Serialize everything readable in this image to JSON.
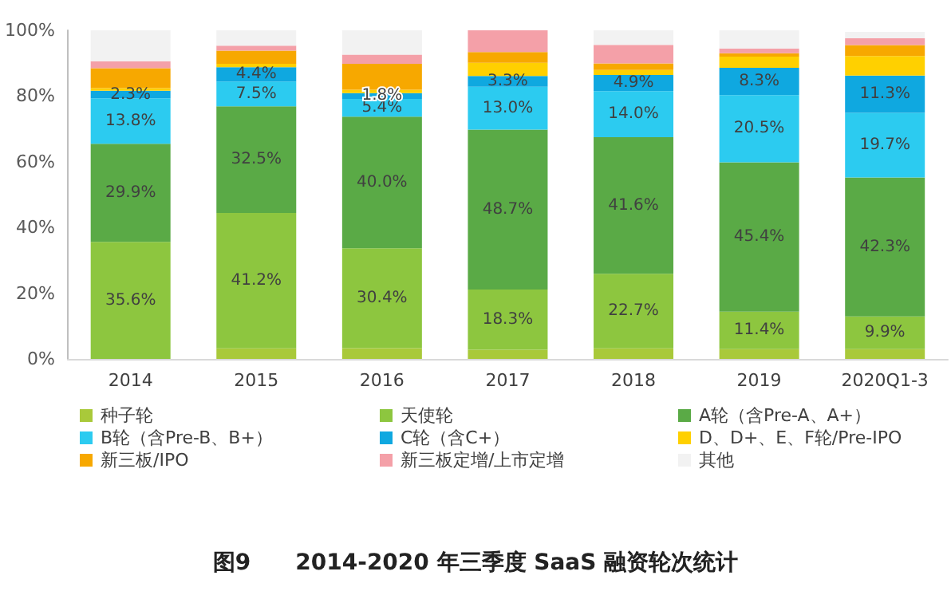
{
  "chart_data": {
    "type": "bar",
    "stacked": true,
    "title": "图9　　2014-2020 年三季度 SaaS 融资轮次统计",
    "categories": [
      "2014",
      "2015",
      "2016",
      "2017",
      "2018",
      "2019",
      "2020Q1-3"
    ],
    "ylim": [
      0,
      100
    ],
    "yticks": [
      {
        "value": 0,
        "label": "0%"
      },
      {
        "value": 20,
        "label": "20%"
      },
      {
        "value": 40,
        "label": "40%"
      },
      {
        "value": 60,
        "label": "60%"
      },
      {
        "value": 80,
        "label": "80%"
      },
      {
        "value": 100,
        "label": "100%"
      }
    ],
    "grid": false,
    "legend": "bottom",
    "series": [
      {
        "name": "种子轮",
        "color": "#a9c93a",
        "values": [
          0,
          3.2,
          3.3,
          2.8,
          3.2,
          3.0,
          3.0
        ]
      },
      {
        "name": "天使轮",
        "color": "#8dc63f",
        "values": [
          35.6,
          41.2,
          30.4,
          18.3,
          22.7,
          11.4,
          9.9
        ],
        "value_labels": [
          "35.6%",
          "41.2%",
          "30.4%",
          "18.3%",
          "22.7%",
          "11.4%",
          "9.9%"
        ]
      },
      {
        "name": "A轮（含Pre-A、A+）",
        "color": "#5aaa46",
        "values": [
          29.9,
          32.5,
          40.0,
          48.7,
          41.6,
          45.4,
          42.3
        ],
        "value_labels": [
          "29.9%",
          "32.5%",
          "40.0%",
          "48.7%",
          "41.6%",
          "45.4%",
          "42.3%"
        ]
      },
      {
        "name": "B轮（含Pre-B、B+）",
        "color": "#2ccbf0",
        "values": [
          13.8,
          7.5,
          5.4,
          13.0,
          14.0,
          20.5,
          19.7
        ],
        "value_labels": [
          "13.8%",
          "7.5%",
          "5.4%",
          "13.0%",
          "14.0%",
          "20.5%",
          "19.7%"
        ]
      },
      {
        "name": "C轮（含C+）",
        "color": "#0fa8e0",
        "values": [
          2.3,
          4.4,
          1.8,
          3.3,
          4.9,
          8.3,
          11.3
        ],
        "value_labels": [
          "2.3%",
          "4.4%",
          "1.8%",
          "3.3%",
          "4.9%",
          "8.3%",
          "11.3%"
        ]
      },
      {
        "name": "D、D+、E、F轮/Pre-IPO",
        "color": "#ffd000",
        "values": [
          0.8,
          1.0,
          1.0,
          4.0,
          1.5,
          3.4,
          6.0
        ]
      },
      {
        "name": "新三板/IPO",
        "color": "#f7a800",
        "values": [
          6.1,
          4.0,
          7.9,
          3.3,
          2.0,
          1.0,
          3.3
        ]
      },
      {
        "name": "新三板定增/上市定增",
        "color": "#f4a0a8",
        "values": [
          2.1,
          1.5,
          2.8,
          6.6,
          5.7,
          1.5,
          2.1
        ]
      },
      {
        "name": "其他",
        "color": "#f2f2f2",
        "values": [
          9.4,
          4.7,
          7.4,
          0,
          4.4,
          5.5,
          1.9
        ]
      }
    ]
  }
}
